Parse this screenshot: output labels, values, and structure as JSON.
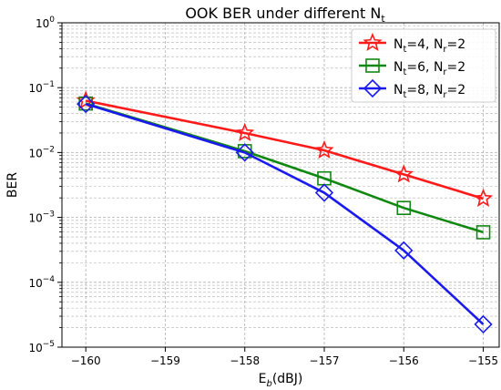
{
  "chart_data": {
    "type": "line",
    "title": {
      "main": "OOK BER under different N",
      "sub": "t"
    },
    "xlabel": {
      "main": "E",
      "sub": "b",
      "rest": "(dBJ)"
    },
    "ylabel": "BER",
    "x": [
      -160,
      -158,
      -157,
      -156,
      -155
    ],
    "xlim": [
      -160.3,
      -154.8
    ],
    "ylim": [
      1e-05,
      1
    ],
    "yscale": "log",
    "grid": true,
    "legend_position": "top-right",
    "x_ticks": [
      {
        "value": -160,
        "label": "−160"
      },
      {
        "value": -159,
        "label": "−159"
      },
      {
        "value": -158,
        "label": "−158"
      },
      {
        "value": -157,
        "label": "−157"
      },
      {
        "value": -156,
        "label": "−156"
      },
      {
        "value": -155,
        "label": "−155"
      }
    ],
    "y_ticks": [
      {
        "value": 1,
        "base": "10",
        "exp": "0"
      },
      {
        "value": 0.1,
        "base": "10",
        "exp": "−1"
      },
      {
        "value": 0.01,
        "base": "10",
        "exp": "−2"
      },
      {
        "value": 0.001,
        "base": "10",
        "exp": "−3"
      },
      {
        "value": 0.0001,
        "base": "10",
        "exp": "−4"
      },
      {
        "value": 1e-05,
        "base": "10",
        "exp": "−5"
      }
    ],
    "series": [
      {
        "legend": {
          "a": "N",
          "as": "t",
          "b": "=4, N",
          "bs": "r",
          "c": "=2"
        },
        "color": "#ff1a1a",
        "marker": "star",
        "values": [
          0.063,
          0.02,
          0.0108,
          0.0046,
          0.00195
        ]
      },
      {
        "legend": {
          "a": "N",
          "as": "t",
          "b": "=6, N",
          "bs": "r",
          "c": "=2"
        },
        "color": "#118811",
        "marker": "square",
        "values": [
          0.057,
          0.0105,
          0.004,
          0.0014,
          0.00059
        ]
      },
      {
        "legend": {
          "a": "N",
          "as": "t",
          "b": "=8, N",
          "bs": "r",
          "c": "=2"
        },
        "color": "#1a1aee",
        "marker": "diamond",
        "values": [
          0.056,
          0.01,
          0.0024,
          0.00031,
          2.25e-05
        ]
      }
    ]
  }
}
